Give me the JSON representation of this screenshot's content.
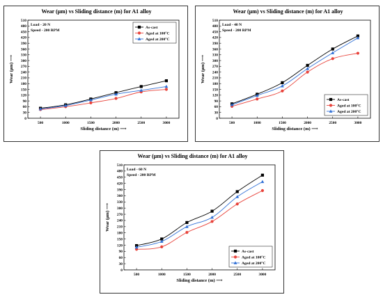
{
  "chart_data": [
    {
      "type": "line",
      "title": "Wear (µm) vs Sliding distance (m) for A1 alloy",
      "xlabel": "Sliding distance (m) ⟶",
      "ylabel": "Wear (µm) ⟶",
      "notes": [
        "Load - 20 N",
        "Speed - 200 RPM"
      ],
      "legend_position": "top-right",
      "x": [
        500,
        1000,
        1500,
        2000,
        2500,
        3000
      ],
      "ylim": [
        0,
        510
      ],
      "yticks": [
        0,
        30,
        60,
        90,
        120,
        150,
        180,
        210,
        240,
        270,
        300,
        330,
        360,
        390,
        420,
        450,
        480,
        510
      ],
      "series": [
        {
          "name": "As-cast",
          "color": "#000000",
          "marker": "square",
          "values": [
            52,
            70,
            100,
            133,
            165,
            195
          ]
        },
        {
          "name": "Aged at 100°C",
          "color": "#e8423a",
          "marker": "circle",
          "values": [
            45,
            60,
            80,
            103,
            137,
            150
          ]
        },
        {
          "name": "Aged at 200°C",
          "color": "#2f6fd6",
          "marker": "triangle",
          "values": [
            48,
            66,
            95,
            125,
            145,
            165
          ]
        }
      ]
    },
    {
      "type": "line",
      "title": "Wear (µm) vs Sliding distance (m) for A1 alloy",
      "xlabel": "Sliding distance (m) ⟶",
      "ylabel": "Wear (µm) ⟶",
      "notes": [
        "Load - 40 N",
        "Speed - 200 RPM"
      ],
      "legend_position": "bottom-right",
      "x": [
        500,
        1000,
        1500,
        2000,
        2500,
        3000
      ],
      "ylim": [
        0,
        510
      ],
      "yticks": [
        0,
        30,
        60,
        90,
        120,
        150,
        180,
        210,
        240,
        270,
        300,
        330,
        360,
        390,
        420,
        450,
        480,
        510
      ],
      "series": [
        {
          "name": "As-cast",
          "color": "#000000",
          "marker": "square",
          "values": [
            75,
            125,
            185,
            275,
            360,
            428
          ]
        },
        {
          "name": "Aged at 100°C",
          "color": "#e8423a",
          "marker": "circle",
          "values": [
            62,
            100,
            142,
            240,
            310,
            338
          ]
        },
        {
          "name": "Aged at 200°C",
          "color": "#2f6fd6",
          "marker": "triangle",
          "values": [
            70,
            118,
            168,
            258,
            340,
            418
          ]
        }
      ]
    },
    {
      "type": "line",
      "title": "Wear (µm) vs Sliding distance (m) for A1 alloy",
      "xlabel": "Sliding distance (m) ⟶",
      "ylabel": "Wear (µm) ⟶",
      "notes": [
        "Load - 60 N",
        "Speed - 200 RPM"
      ],
      "legend_position": "bottom-right",
      "x": [
        500,
        1000,
        1500,
        2000,
        2500,
        3000
      ],
      "ylim": [
        0,
        510
      ],
      "yticks": [
        0,
        30,
        60,
        90,
        120,
        150,
        180,
        210,
        240,
        270,
        300,
        330,
        360,
        390,
        420,
        450,
        480,
        510
      ],
      "series": [
        {
          "name": "As-cast",
          "color": "#000000",
          "marker": "square",
          "values": [
            118,
            150,
            230,
            285,
            380,
            460
          ]
        },
        {
          "name": "Aged at 100°C",
          "color": "#e8423a",
          "marker": "circle",
          "values": [
            100,
            112,
            182,
            235,
            320,
            385
          ]
        },
        {
          "name": "Aged at 200°C",
          "color": "#2f6fd6",
          "marker": "triangle",
          "values": [
            110,
            138,
            210,
            255,
            355,
            428
          ]
        }
      ]
    }
  ]
}
